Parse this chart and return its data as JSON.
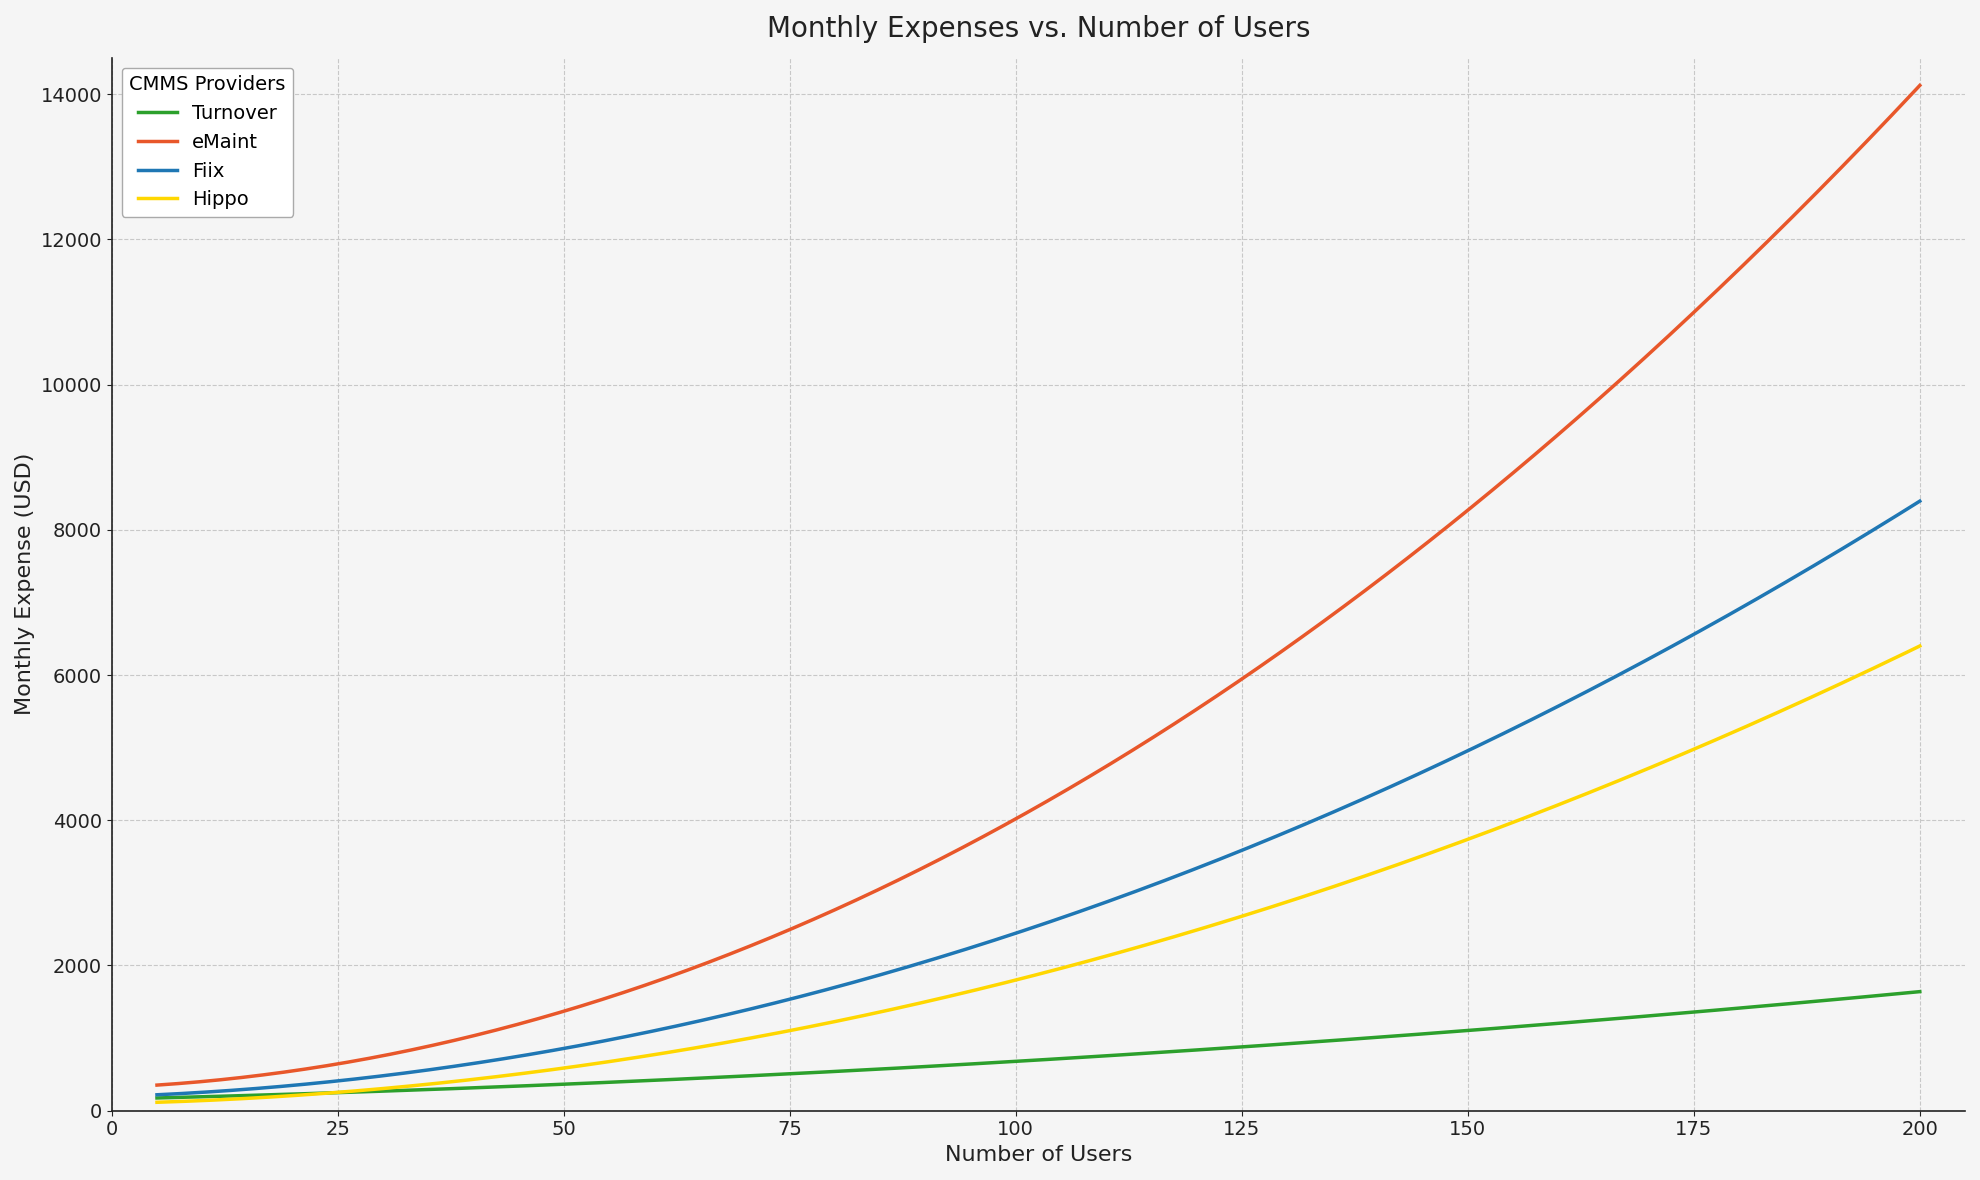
{
  "title": "Monthly Expenses vs. Number of Users",
  "xlabel": "Number of Users",
  "ylabel": "Monthly Expense (USD)",
  "x_start": 5,
  "x_end": 200,
  "series": [
    {
      "name": "Turnover",
      "color": "#2ca02c",
      "a": 0.022,
      "b": 3.0,
      "c": 160
    },
    {
      "name": "eMaint",
      "color": "#e8572a",
      "a": 0.32,
      "b": 5.0,
      "c": 320
    },
    {
      "name": "Fiix",
      "color": "#1f77b4",
      "a": 0.185,
      "b": 4.0,
      "c": 195
    },
    {
      "name": "Hippo",
      "color": "#FFD700",
      "a": 0.145,
      "b": 2.5,
      "c": 100
    }
  ],
  "legend_title": "CMMS Providers",
  "legend_loc": "upper left",
  "xlim": [
    0,
    205
  ],
  "ylim": [
    0,
    14500
  ],
  "title_fontsize": 20,
  "label_fontsize": 16,
  "tick_fontsize": 14,
  "legend_fontsize": 14,
  "linewidth": 2.5,
  "grid_color": "#c8c8c8",
  "grid_style": "--",
  "background_color": "#f5f5f5",
  "spine_color": "#222222"
}
